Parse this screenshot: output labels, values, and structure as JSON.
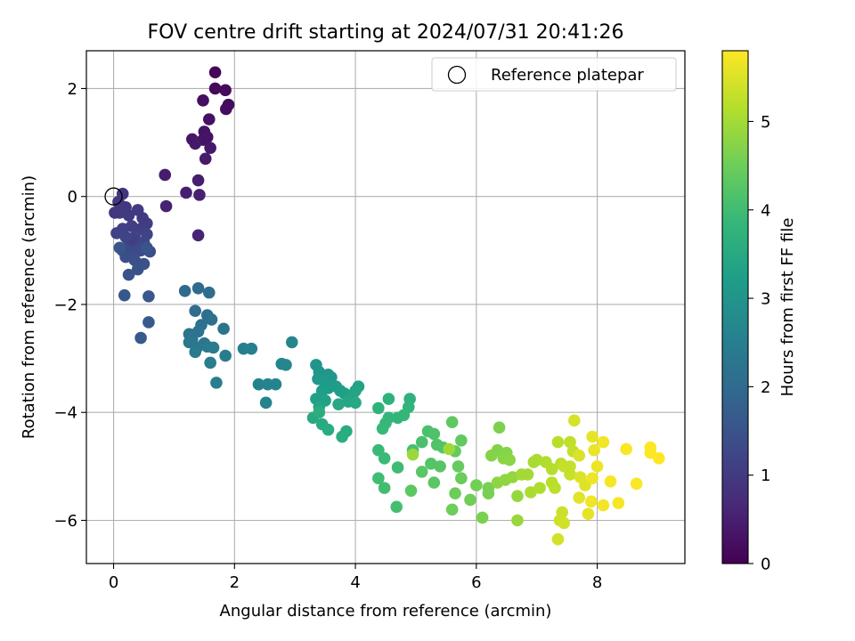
{
  "chart_data": {
    "type": "scatter",
    "title": "FOV centre drift starting at 2024/07/31 20:41:26",
    "xlabel": "Angular distance from reference (arcmin)",
    "ylabel": "Rotation from reference (arcmin)",
    "xlim": [
      -0.45,
      9.45
    ],
    "ylim": [
      -6.8,
      2.7
    ],
    "x_ticks": [
      0,
      2,
      4,
      6,
      8
    ],
    "x_tick_labels": [
      "0",
      "2",
      "4",
      "6",
      "8"
    ],
    "y_ticks": [
      2,
      0,
      -2,
      -4,
      -6
    ],
    "y_tick_labels": [
      "2",
      "0",
      "−2",
      "−4",
      "−6"
    ],
    "grid": true,
    "legend": {
      "placement": "top-right",
      "entries": [
        "Reference platepar"
      ]
    },
    "reference_point": {
      "x": 0,
      "y": 0,
      "label": "Reference platepar"
    },
    "colorbar": {
      "label": "Hours from first FF file",
      "colormap": "viridis",
      "range": [
        0,
        5.8
      ],
      "ticks": [
        0,
        1,
        2,
        3,
        4,
        5
      ],
      "tick_labels": [
        "0",
        "1",
        "2",
        "3",
        "4",
        "5"
      ],
      "stops": [
        "#440154",
        "#482878",
        "#3e4989",
        "#31688e",
        "#26828e",
        "#1f9e89",
        "#35b779",
        "#6ece58",
        "#b5de2b",
        "#fde725"
      ]
    },
    "points": [
      {
        "x": 1.68,
        "y": 2.3,
        "c": 0.1
      },
      {
        "x": 1.68,
        "y": 2.0,
        "c": 0.12
      },
      {
        "x": 1.85,
        "y": 1.97,
        "c": 0.15
      },
      {
        "x": 1.9,
        "y": 1.7,
        "c": 0.18
      },
      {
        "x": 1.86,
        "y": 1.62,
        "c": 0.2
      },
      {
        "x": 1.48,
        "y": 1.78,
        "c": 0.22
      },
      {
        "x": 1.58,
        "y": 1.43,
        "c": 0.25
      },
      {
        "x": 1.5,
        "y": 1.2,
        "c": 0.28
      },
      {
        "x": 1.55,
        "y": 1.1,
        "c": 0.3
      },
      {
        "x": 1.48,
        "y": 1.05,
        "c": 0.32
      },
      {
        "x": 1.3,
        "y": 1.06,
        "c": 0.35
      },
      {
        "x": 1.35,
        "y": 0.98,
        "c": 0.38
      },
      {
        "x": 1.6,
        "y": 0.9,
        "c": 0.4
      },
      {
        "x": 1.52,
        "y": 0.7,
        "c": 0.42
      },
      {
        "x": 0.85,
        "y": 0.4,
        "c": 0.45
      },
      {
        "x": 1.4,
        "y": 0.3,
        "c": 0.48
      },
      {
        "x": 1.2,
        "y": 0.07,
        "c": 0.5
      },
      {
        "x": 1.42,
        "y": 0.03,
        "c": 0.52
      },
      {
        "x": 0.87,
        "y": -0.18,
        "c": 0.55
      },
      {
        "x": 1.4,
        "y": -0.72,
        "c": 0.58
      },
      {
        "x": 0.15,
        "y": 0.05,
        "c": 0.9
      },
      {
        "x": 0.08,
        "y": -0.1,
        "c": 0.92
      },
      {
        "x": 0.2,
        "y": -0.2,
        "c": 0.95
      },
      {
        "x": 0.1,
        "y": -0.3,
        "c": 0.98
      },
      {
        "x": 0.25,
        "y": -0.35,
        "c": 1.0
      },
      {
        "x": 0.4,
        "y": -0.25,
        "c": 1.02
      },
      {
        "x": 0.55,
        "y": -0.5,
        "c": 1.05
      },
      {
        "x": 0.3,
        "y": -0.55,
        "c": 1.08
      },
      {
        "x": 0.45,
        "y": -0.6,
        "c": 1.1
      },
      {
        "x": 0.15,
        "y": -0.6,
        "c": 1.12
      },
      {
        "x": 0.05,
        "y": -0.68,
        "c": 1.15
      },
      {
        "x": 0.35,
        "y": -0.75,
        "c": 1.18
      },
      {
        "x": 0.55,
        "y": -0.7,
        "c": 1.2
      },
      {
        "x": 0.5,
        "y": -0.85,
        "c": 1.22
      },
      {
        "x": 0.4,
        "y": -0.9,
        "c": 1.25
      },
      {
        "x": 0.25,
        "y": -0.88,
        "c": 1.28
      },
      {
        "x": 0.15,
        "y": -1.0,
        "c": 1.3
      },
      {
        "x": 0.3,
        "y": -1.05,
        "c": 1.32
      },
      {
        "x": 0.45,
        "y": -1.0,
        "c": 1.35
      },
      {
        "x": 0.6,
        "y": -1.02,
        "c": 1.38
      },
      {
        "x": 0.2,
        "y": -1.12,
        "c": 1.4
      },
      {
        "x": 0.35,
        "y": -1.18,
        "c": 1.42
      },
      {
        "x": 0.5,
        "y": -1.25,
        "c": 1.45
      },
      {
        "x": 0.4,
        "y": -1.35,
        "c": 1.48
      },
      {
        "x": 0.25,
        "y": -1.45,
        "c": 1.5
      },
      {
        "x": 0.55,
        "y": -0.95,
        "c": 1.52
      },
      {
        "x": 0.1,
        "y": -0.95,
        "c": 1.55
      },
      {
        "x": 0.58,
        "y": -1.85,
        "c": 1.58
      },
      {
        "x": 0.18,
        "y": -1.83,
        "c": 1.6
      },
      {
        "x": 0.45,
        "y": -2.62,
        "c": 1.62
      },
      {
        "x": 0.58,
        "y": -2.33,
        "c": 1.65
      },
      {
        "x": 0.02,
        "y": -0.3,
        "c": 0.95
      },
      {
        "x": 0.48,
        "y": -0.4,
        "c": 1.0
      },
      {
        "x": 0.3,
        "y": -0.8,
        "c": 1.1
      },
      {
        "x": 0.2,
        "y": -0.75,
        "c": 1.2
      },
      {
        "x": 1.4,
        "y": -1.7,
        "c": 2.0
      },
      {
        "x": 1.18,
        "y": -1.75,
        "c": 2.02
      },
      {
        "x": 1.58,
        "y": -1.78,
        "c": 2.05
      },
      {
        "x": 1.35,
        "y": -2.12,
        "c": 2.08
      },
      {
        "x": 1.55,
        "y": -2.2,
        "c": 2.1
      },
      {
        "x": 1.62,
        "y": -2.28,
        "c": 2.12
      },
      {
        "x": 1.45,
        "y": -2.38,
        "c": 2.15
      },
      {
        "x": 1.4,
        "y": -2.5,
        "c": 2.18
      },
      {
        "x": 1.25,
        "y": -2.55,
        "c": 2.2
      },
      {
        "x": 1.82,
        "y": -2.45,
        "c": 2.22
      },
      {
        "x": 1.3,
        "y": -2.65,
        "c": 2.25
      },
      {
        "x": 1.5,
        "y": -2.72,
        "c": 2.28
      },
      {
        "x": 1.25,
        "y": -2.7,
        "c": 2.3
      },
      {
        "x": 1.38,
        "y": -2.8,
        "c": 2.32
      },
      {
        "x": 1.55,
        "y": -2.78,
        "c": 2.35
      },
      {
        "x": 1.35,
        "y": -2.88,
        "c": 2.38
      },
      {
        "x": 1.65,
        "y": -2.8,
        "c": 2.4
      },
      {
        "x": 1.85,
        "y": -2.95,
        "c": 2.42
      },
      {
        "x": 1.6,
        "y": -3.08,
        "c": 2.45
      },
      {
        "x": 1.7,
        "y": -3.45,
        "c": 2.48
      },
      {
        "x": 2.15,
        "y": -2.82,
        "c": 2.5
      },
      {
        "x": 2.28,
        "y": -2.82,
        "c": 2.52
      },
      {
        "x": 2.4,
        "y": -3.48,
        "c": 2.55
      },
      {
        "x": 2.55,
        "y": -3.48,
        "c": 2.58
      },
      {
        "x": 2.52,
        "y": -3.82,
        "c": 2.6
      },
      {
        "x": 2.68,
        "y": -3.48,
        "c": 2.62
      },
      {
        "x": 2.78,
        "y": -3.1,
        "c": 2.65
      },
      {
        "x": 2.85,
        "y": -3.12,
        "c": 2.68
      },
      {
        "x": 2.95,
        "y": -2.7,
        "c": 2.7
      },
      {
        "x": 3.35,
        "y": -3.12,
        "c": 3.0
      },
      {
        "x": 3.4,
        "y": -3.25,
        "c": 3.02
      },
      {
        "x": 3.55,
        "y": -3.3,
        "c": 3.05
      },
      {
        "x": 3.6,
        "y": -3.35,
        "c": 3.08
      },
      {
        "x": 3.38,
        "y": -3.38,
        "c": 3.1
      },
      {
        "x": 3.48,
        "y": -3.42,
        "c": 3.12
      },
      {
        "x": 3.68,
        "y": -3.52,
        "c": 3.15
      },
      {
        "x": 3.55,
        "y": -3.55,
        "c": 3.18
      },
      {
        "x": 3.75,
        "y": -3.6,
        "c": 3.2
      },
      {
        "x": 3.45,
        "y": -3.6,
        "c": 3.22
      },
      {
        "x": 3.82,
        "y": -3.65,
        "c": 3.25
      },
      {
        "x": 3.35,
        "y": -3.75,
        "c": 3.28
      },
      {
        "x": 3.5,
        "y": -3.78,
        "c": 3.3
      },
      {
        "x": 3.95,
        "y": -3.7,
        "c": 3.32
      },
      {
        "x": 4.05,
        "y": -3.52,
        "c": 3.35
      },
      {
        "x": 4.0,
        "y": -3.6,
        "c": 3.38
      },
      {
        "x": 3.4,
        "y": -3.9,
        "c": 3.4
      },
      {
        "x": 3.88,
        "y": -3.8,
        "c": 3.42
      },
      {
        "x": 3.72,
        "y": -3.85,
        "c": 3.45
      },
      {
        "x": 4.0,
        "y": -3.82,
        "c": 3.48
      },
      {
        "x": 3.3,
        "y": -4.1,
        "c": 3.5
      },
      {
        "x": 3.45,
        "y": -4.22,
        "c": 3.52
      },
      {
        "x": 3.55,
        "y": -4.32,
        "c": 3.55
      },
      {
        "x": 3.85,
        "y": -4.35,
        "c": 3.58
      },
      {
        "x": 3.78,
        "y": -4.45,
        "c": 3.6
      },
      {
        "x": 3.4,
        "y": -4.0,
        "c": 3.62
      },
      {
        "x": 4.55,
        "y": -3.75,
        "c": 3.7
      },
      {
        "x": 4.9,
        "y": -3.75,
        "c": 3.72
      },
      {
        "x": 4.38,
        "y": -3.92,
        "c": 3.75
      },
      {
        "x": 4.88,
        "y": -3.9,
        "c": 3.78
      },
      {
        "x": 4.55,
        "y": -4.1,
        "c": 3.8
      },
      {
        "x": 4.7,
        "y": -4.1,
        "c": 3.82
      },
      {
        "x": 4.8,
        "y": -4.05,
        "c": 3.85
      },
      {
        "x": 4.5,
        "y": -4.2,
        "c": 3.88
      },
      {
        "x": 4.45,
        "y": -4.3,
        "c": 3.9
      },
      {
        "x": 4.38,
        "y": -4.7,
        "c": 3.92
      },
      {
        "x": 4.48,
        "y": -4.85,
        "c": 3.95
      },
      {
        "x": 4.7,
        "y": -5.02,
        "c": 3.98
      },
      {
        "x": 4.38,
        "y": -5.22,
        "c": 4.0
      },
      {
        "x": 4.48,
        "y": -5.4,
        "c": 4.02
      },
      {
        "x": 4.68,
        "y": -5.75,
        "c": 4.05
      },
      {
        "x": 4.95,
        "y": -4.7,
        "c": 4.08
      },
      {
        "x": 5.1,
        "y": -4.55,
        "c": 4.1
      },
      {
        "x": 5.2,
        "y": -4.35,
        "c": 4.12
      },
      {
        "x": 5.3,
        "y": -4.4,
        "c": 4.15
      },
      {
        "x": 5.35,
        "y": -4.6,
        "c": 4.18
      },
      {
        "x": 5.45,
        "y": -4.65,
        "c": 4.2
      },
      {
        "x": 5.25,
        "y": -4.95,
        "c": 4.22
      },
      {
        "x": 5.4,
        "y": -5.0,
        "c": 4.25
      },
      {
        "x": 5.1,
        "y": -5.1,
        "c": 4.28
      },
      {
        "x": 5.3,
        "y": -5.3,
        "c": 4.3
      },
      {
        "x": 4.92,
        "y": -5.45,
        "c": 4.32
      },
      {
        "x": 5.6,
        "y": -4.18,
        "c": 4.35
      },
      {
        "x": 5.75,
        "y": -4.52,
        "c": 4.38
      },
      {
        "x": 5.65,
        "y": -4.72,
        "c": 4.4
      },
      {
        "x": 5.7,
        "y": -5.0,
        "c": 4.42
      },
      {
        "x": 5.75,
        "y": -5.22,
        "c": 4.45
      },
      {
        "x": 5.65,
        "y": -5.5,
        "c": 4.48
      },
      {
        "x": 5.6,
        "y": -5.8,
        "c": 4.5
      },
      {
        "x": 5.9,
        "y": -5.62,
        "c": 4.52
      },
      {
        "x": 6.0,
        "y": -5.35,
        "c": 4.55
      },
      {
        "x": 6.2,
        "y": -5.4,
        "c": 4.58
      },
      {
        "x": 6.2,
        "y": -5.5,
        "c": 4.6
      },
      {
        "x": 6.1,
        "y": -5.95,
        "c": 4.62
      },
      {
        "x": 6.38,
        "y": -4.28,
        "c": 4.65
      },
      {
        "x": 6.35,
        "y": -4.7,
        "c": 4.68
      },
      {
        "x": 6.5,
        "y": -4.75,
        "c": 4.7
      },
      {
        "x": 6.25,
        "y": -4.8,
        "c": 4.72
      },
      {
        "x": 6.45,
        "y": -4.85,
        "c": 4.75
      },
      {
        "x": 6.55,
        "y": -4.88,
        "c": 4.78
      },
      {
        "x": 6.35,
        "y": -5.3,
        "c": 4.8
      },
      {
        "x": 6.48,
        "y": -5.25,
        "c": 4.82
      },
      {
        "x": 6.6,
        "y": -5.2,
        "c": 4.85
      },
      {
        "x": 6.68,
        "y": -5.55,
        "c": 4.88
      },
      {
        "x": 6.68,
        "y": -6.0,
        "c": 4.9
      },
      {
        "x": 4.95,
        "y": -4.78,
        "c": 4.92
      },
      {
        "x": 5.55,
        "y": -4.68,
        "c": 4.95
      },
      {
        "x": 6.75,
        "y": -5.15,
        "c": 4.98
      },
      {
        "x": 6.85,
        "y": -5.15,
        "c": 5.0
      },
      {
        "x": 6.95,
        "y": -4.92,
        "c": 5.02
      },
      {
        "x": 7.0,
        "y": -4.88,
        "c": 5.05
      },
      {
        "x": 6.9,
        "y": -5.48,
        "c": 5.08
      },
      {
        "x": 7.05,
        "y": -5.4,
        "c": 5.1
      },
      {
        "x": 7.15,
        "y": -4.92,
        "c": 5.12
      },
      {
        "x": 7.25,
        "y": -5.05,
        "c": 5.15
      },
      {
        "x": 7.35,
        "y": -4.55,
        "c": 5.18
      },
      {
        "x": 7.4,
        "y": -4.95,
        "c": 5.2
      },
      {
        "x": 7.3,
        "y": -5.4,
        "c": 5.22
      },
      {
        "x": 7.55,
        "y": -4.55,
        "c": 5.25
      },
      {
        "x": 7.6,
        "y": -4.72,
        "c": 5.28
      },
      {
        "x": 7.45,
        "y": -5.0,
        "c": 5.3
      },
      {
        "x": 7.55,
        "y": -5.15,
        "c": 5.32
      },
      {
        "x": 7.42,
        "y": -5.85,
        "c": 5.35
      },
      {
        "x": 7.38,
        "y": -6.0,
        "c": 5.38
      },
      {
        "x": 7.45,
        "y": -6.05,
        "c": 5.4
      },
      {
        "x": 7.35,
        "y": -6.35,
        "c": 5.42
      },
      {
        "x": 7.62,
        "y": -4.15,
        "c": 5.45
      },
      {
        "x": 7.7,
        "y": -4.8,
        "c": 5.48
      },
      {
        "x": 7.72,
        "y": -5.2,
        "c": 5.5
      },
      {
        "x": 7.8,
        "y": -5.35,
        "c": 5.52
      },
      {
        "x": 7.7,
        "y": -5.58,
        "c": 5.55
      },
      {
        "x": 7.85,
        "y": -5.88,
        "c": 5.58
      },
      {
        "x": 7.92,
        "y": -4.45,
        "c": 5.6
      },
      {
        "x": 7.95,
        "y": -4.7,
        "c": 5.62
      },
      {
        "x": 8.0,
        "y": -5.0,
        "c": 5.64
      },
      {
        "x": 7.92,
        "y": -5.22,
        "c": 5.66
      },
      {
        "x": 7.9,
        "y": -5.65,
        "c": 5.68
      },
      {
        "x": 8.1,
        "y": -4.55,
        "c": 5.7
      },
      {
        "x": 8.1,
        "y": -5.72,
        "c": 5.72
      },
      {
        "x": 8.22,
        "y": -5.28,
        "c": 5.74
      },
      {
        "x": 8.35,
        "y": -5.68,
        "c": 5.75
      },
      {
        "x": 8.48,
        "y": -4.68,
        "c": 5.76
      },
      {
        "x": 8.65,
        "y": -5.32,
        "c": 5.77
      },
      {
        "x": 8.88,
        "y": -4.65,
        "c": 5.78
      },
      {
        "x": 8.88,
        "y": -4.75,
        "c": 5.78
      },
      {
        "x": 9.02,
        "y": -4.85,
        "c": 5.8
      },
      {
        "x": 7.55,
        "y": -5.0,
        "c": 5.3
      },
      {
        "x": 7.25,
        "y": -5.3,
        "c": 5.2
      }
    ]
  }
}
